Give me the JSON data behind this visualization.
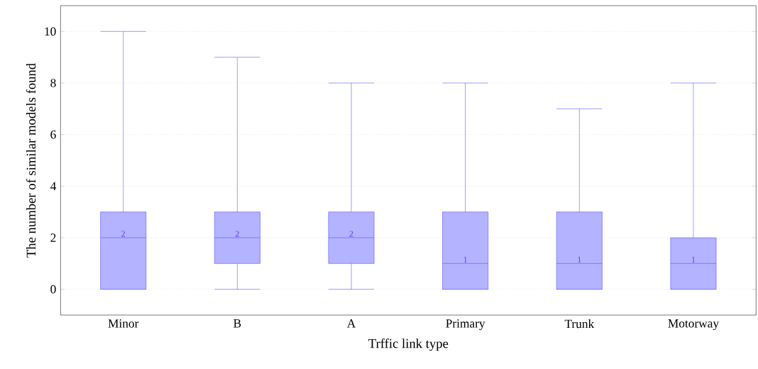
{
  "chart_data": {
    "type": "box",
    "xlabel": "Trffic link type",
    "ylabel": "The number of similar models found",
    "categories": [
      "Minor",
      "B",
      "A",
      "Primary",
      "Trunk",
      "Motorway"
    ],
    "boxes": [
      {
        "low": 0,
        "q1": 0,
        "median": 2,
        "q3": 3,
        "high": 10
      },
      {
        "low": 0,
        "q1": 1,
        "median": 2,
        "q3": 3,
        "high": 9
      },
      {
        "low": 0,
        "q1": 1,
        "median": 2,
        "q3": 3,
        "high": 8
      },
      {
        "low": 0,
        "q1": 0,
        "median": 1,
        "q3": 3,
        "high": 8
      },
      {
        "low": 0,
        "q1": 0,
        "median": 1,
        "q3": 3,
        "high": 7
      },
      {
        "low": 0,
        "q1": 0,
        "median": 1,
        "q3": 2,
        "high": 8
      }
    ],
    "color": "#4a4aff",
    "ylim": [
      -1,
      11
    ],
    "yticks": [
      0,
      2,
      4,
      6,
      8,
      10
    ],
    "grid": "y",
    "value_labels": [
      "2",
      "2",
      "2",
      "1",
      "1",
      "1"
    ]
  }
}
